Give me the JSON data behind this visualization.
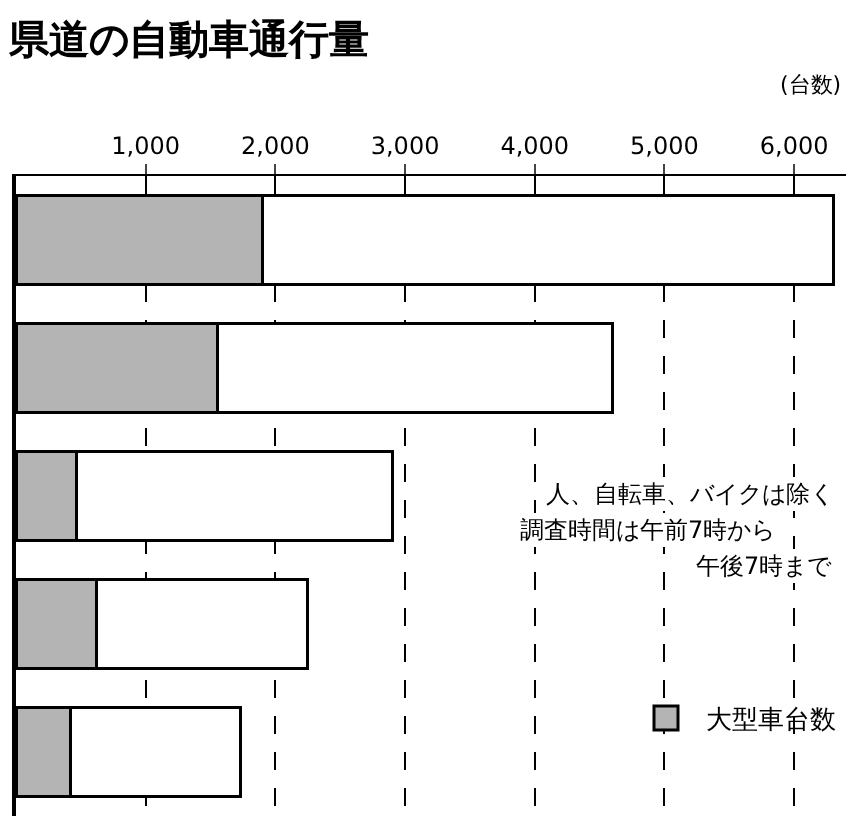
{
  "chart_data": {
    "type": "bar",
    "title": "県道の自動車通行量",
    "xlabel": "(台数)",
    "orientation": "horizontal",
    "stacked": true,
    "categories": [
      null,
      null,
      null,
      null,
      null
    ],
    "series": [
      {
        "name": "大型車台数",
        "color": "#b4b4b4",
        "values": [
          1900,
          1550,
          470,
          620,
          420
        ]
      },
      {
        "color": "#ffffff",
        "values": [
          4400,
          3050,
          2430,
          1630,
          1310
        ]
      }
    ],
    "xlim": [
      0,
      6400
    ],
    "xticks": [
      {
        "value": 1000,
        "label": "1,000"
      },
      {
        "value": 2000,
        "label": "2,000"
      },
      {
        "value": 3000,
        "label": "3,000"
      },
      {
        "value": 4000,
        "label": "4,000"
      },
      {
        "value": 5000,
        "label": "5,000"
      },
      {
        "value": 6000,
        "label": "6,000"
      }
    ],
    "grid": "x",
    "legend": "bottom right",
    "tick_labels": "x",
    "annotations": [
      "人、自転車、バイクは除く",
      "調査時間は午前7時から",
      "午後7時まで"
    ]
  }
}
